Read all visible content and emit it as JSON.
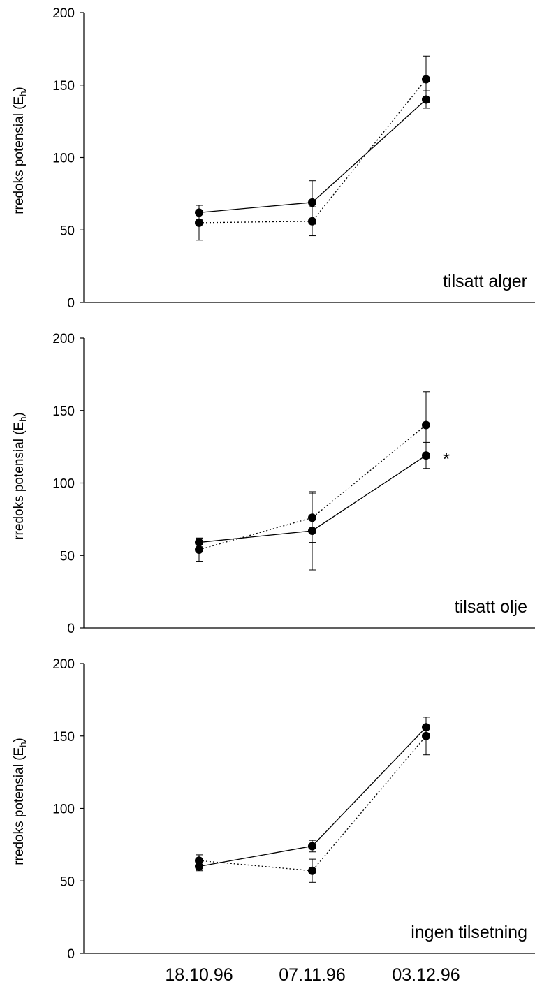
{
  "chart_data": [
    {
      "type": "line",
      "title": "",
      "panel_label": "tilsatt alger",
      "ylabel": {
        "main": "rredoks potensial (E",
        "sub": "h",
        "close": ")"
      },
      "ylim": [
        0,
        200
      ],
      "yticks": [
        0,
        50,
        100,
        150,
        200
      ],
      "grid": false,
      "series": [
        {
          "style": "solid",
          "values": [
            62,
            69,
            140
          ],
          "errors": [
            5,
            15,
            6
          ]
        },
        {
          "style": "dotted",
          "values": [
            55,
            56,
            154
          ],
          "errors": [
            12,
            10,
            16
          ]
        }
      ],
      "annotations": []
    },
    {
      "type": "line",
      "title": "",
      "panel_label": "tilsatt olje",
      "ylabel": {
        "main": "rredoks potensial (E",
        "sub": "h",
        "close": ")"
      },
      "ylim": [
        0,
        200
      ],
      "yticks": [
        0,
        50,
        100,
        150,
        200
      ],
      "grid": false,
      "series": [
        {
          "style": "solid",
          "values": [
            59,
            67,
            119
          ],
          "errors": [
            3,
            27,
            9
          ]
        },
        {
          "style": "dotted",
          "values": [
            54,
            76,
            140
          ],
          "errors": [
            8,
            17,
            23
          ]
        }
      ],
      "annotations": [
        {
          "text": "*",
          "at_category": "03.12.96",
          "y": 119
        }
      ]
    },
    {
      "type": "line",
      "title": "",
      "panel_label": "ingen tilsetning",
      "ylabel": {
        "main": "rredoks potensial (E",
        "sub": "h",
        "close": ")"
      },
      "ylim": [
        0,
        200
      ],
      "yticks": [
        0,
        50,
        100,
        150,
        200
      ],
      "grid": false,
      "series": [
        {
          "style": "solid",
          "values": [
            60,
            74,
            156
          ],
          "errors": [
            3,
            4,
            7
          ]
        },
        {
          "style": "dotted",
          "values": [
            64,
            57,
            150
          ],
          "errors": [
            4,
            8,
            13
          ]
        }
      ],
      "annotations": []
    }
  ],
  "categories": [
    "18.10.96",
    "07.11.96",
    "03.12.96"
  ]
}
